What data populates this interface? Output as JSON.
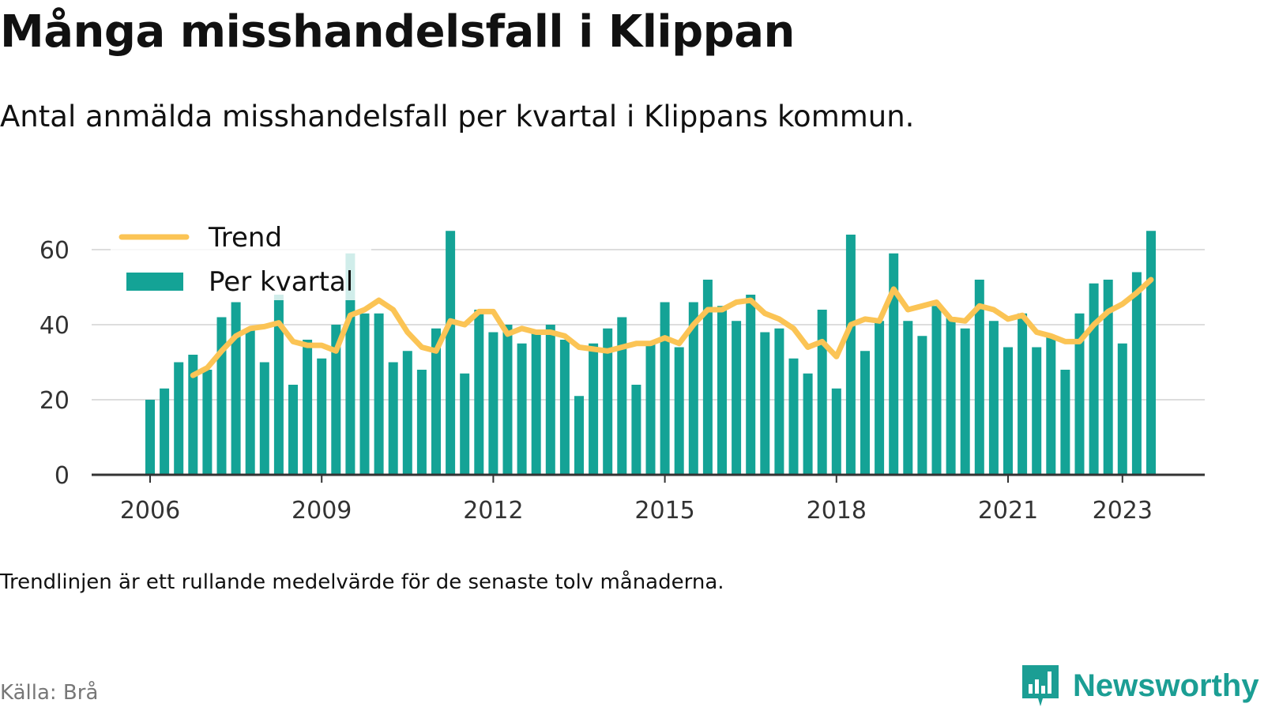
{
  "title": "Många misshandelsfall i Klippan",
  "subtitle": "Antal anmälda misshandelsfall per kvartal i Klippans kommun.",
  "note": "Trendlinjen är ett rullande medelvärde för de senaste tolv månaderna.",
  "source": "Källa: Brå",
  "brand": {
    "name": "Newsworthy",
    "icon": "newsworthy-logo-icon",
    "color": "#1b9e94"
  },
  "colors": {
    "bars": "#14a396",
    "trend": "#fbc455",
    "grid": "#dddddd",
    "axis": "#333333"
  },
  "chart_data": {
    "type": "bar",
    "x_unit": "quarter",
    "start": "2006 Q1",
    "ylim": [
      0,
      65
    ],
    "yticks": [
      0,
      20,
      40,
      60
    ],
    "xticks": [
      {
        "label": "2006",
        "index": 0
      },
      {
        "label": "2009",
        "index": 12
      },
      {
        "label": "2012",
        "index": 24
      },
      {
        "label": "2015",
        "index": 36
      },
      {
        "label": "2018",
        "index": 48
      },
      {
        "label": "2021",
        "index": 60
      },
      {
        "label": "2023",
        "index": 68
      }
    ],
    "legend": {
      "position": "top-left",
      "entries": [
        "Trend",
        "Per kvartal"
      ]
    },
    "series": [
      {
        "name": "Per kvartal",
        "type": "bar",
        "values": [
          20,
          23,
          30,
          32,
          28,
          42,
          46,
          39,
          30,
          48,
          24,
          36,
          31,
          40,
          59,
          43,
          43,
          30,
          33,
          28,
          39,
          65,
          27,
          44,
          38,
          40,
          35,
          38,
          40,
          36,
          21,
          35,
          39,
          42,
          24,
          35,
          46,
          34,
          46,
          52,
          45,
          41,
          48,
          38,
          39,
          31,
          27,
          44,
          23,
          64,
          33,
          41,
          59,
          41,
          37,
          45,
          42,
          39,
          52,
          41,
          34,
          43,
          34,
          37,
          28,
          43,
          51,
          52,
          35,
          54,
          65
        ]
      },
      {
        "name": "Trend",
        "type": "line",
        "start_index": 3,
        "values": [
          26.5,
          28.5,
          33,
          37,
          39,
          39.5,
          40.5,
          35.5,
          34.5,
          34.5,
          33,
          42.5,
          44,
          46.5,
          44,
          38,
          34,
          33,
          41,
          40,
          43.5,
          43.5,
          37.5,
          39,
          38,
          38,
          37,
          34,
          33.5,
          33,
          34,
          35,
          35,
          36.5,
          35,
          40,
          44,
          44,
          46,
          46.5,
          43,
          41.5,
          39,
          34,
          35.5,
          31.5,
          40,
          41.5,
          41,
          49.5,
          44,
          45,
          46,
          41.5,
          41,
          45,
          44,
          41.5,
          42.5,
          38,
          37,
          35.5,
          35.5,
          40,
          43.5,
          45.5,
          48.5,
          52
        ]
      }
    ]
  }
}
